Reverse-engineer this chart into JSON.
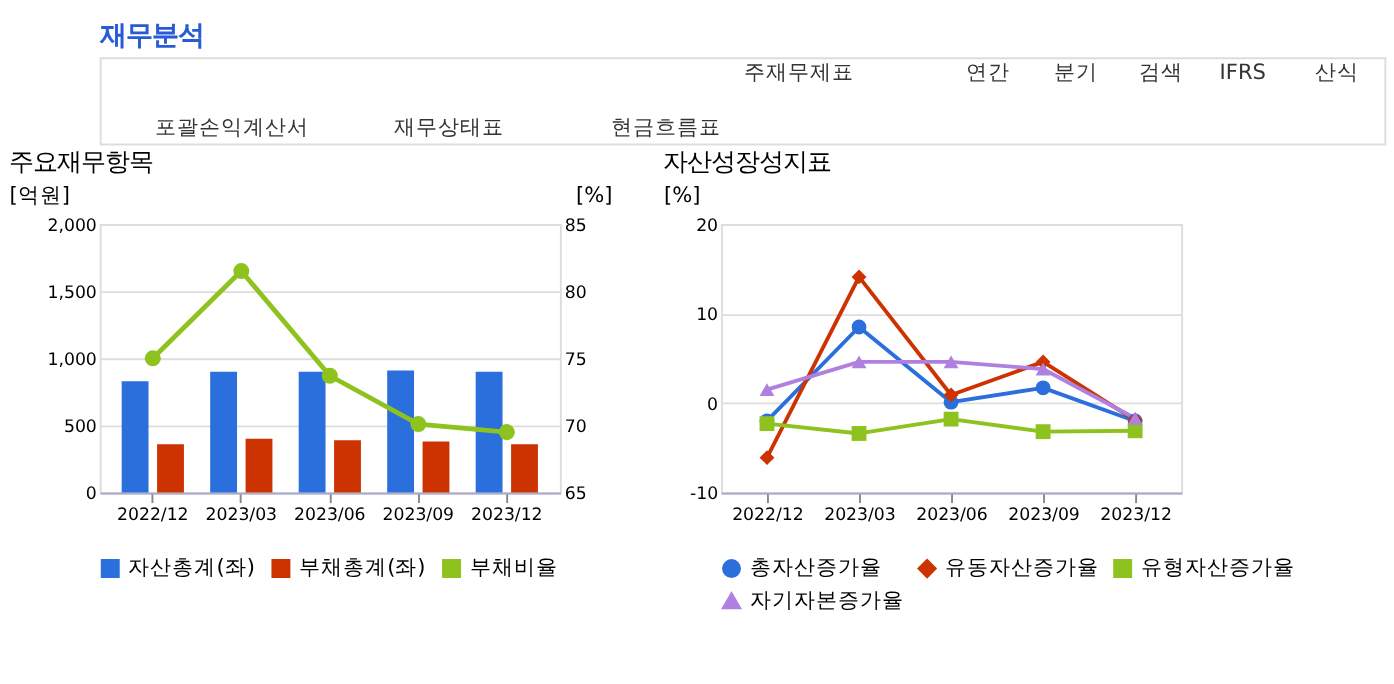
{
  "chart_data": [
    {
      "type": "other",
      "title": "재무분석",
      "annotations": [
        "주재무제표",
        "연간",
        "분기",
        "검색",
        "IFRS",
        "산식",
        "포괄손익계산서",
        "재무상태표",
        "현금흐름표"
      ]
    },
    {
      "type": "bar",
      "title": "주요재무항목",
      "categories": [
        "2022/12",
        "2023/03",
        "2023/06",
        "2023/09",
        "2023/12"
      ],
      "ylabel": "[억원]",
      "y2label": "[%]",
      "ylim": [
        0,
        2000
      ],
      "yticks": [
        0,
        500,
        {
          "value": 1000,
          "label": "1,000"
        },
        {
          "value": 1500,
          "label": "1,500"
        },
        {
          "value": 2000,
          "label": "2,000"
        }
      ],
      "y2lim": [
        65,
        85
      ],
      "y2ticks": [
        65,
        70,
        75,
        80,
        85
      ],
      "grid": "y",
      "legend": "bottom",
      "series": [
        {
          "name": "자산총계(좌)",
          "color": "#2a6fdb",
          "values": [
            830,
            900,
            900,
            910,
            900
          ]
        },
        {
          "name": "부채총계(좌)",
          "color": "#cc3300",
          "values": [
            360,
            400,
            390,
            380,
            360
          ]
        },
        {
          "name": "부채비율",
          "color": "#8dc21f",
          "type": "line",
          "axis": "y2",
          "marker": "circle",
          "values": [
            75.0,
            81.5,
            73.7,
            70.1,
            69.5
          ]
        }
      ]
    },
    {
      "type": "line",
      "title": "자산성장성지표",
      "categories": [
        "2022/12",
        "2023/03",
        "2023/06",
        "2023/09",
        "2023/12"
      ],
      "ylabel": "[%]",
      "ylim": [
        -10,
        20
      ],
      "yticks": [
        -10,
        0,
        10,
        20
      ],
      "grid": "y",
      "legend": "bottom",
      "series": [
        {
          "name": "총자산증가율",
          "color": "#2a6fdb",
          "marker": "circle",
          "values": [
            -2.0,
            8.5,
            0.1,
            1.7,
            -2.0
          ]
        },
        {
          "name": "유동자산증가율",
          "color": "#cc3300",
          "marker": "diamond",
          "values": [
            -6.1,
            14.1,
            0.9,
            4.6,
            -1.9
          ]
        },
        {
          "name": "유형자산증가율",
          "color": "#8dc21f",
          "marker": "square",
          "values": [
            -2.3,
            -3.4,
            -1.8,
            -3.2,
            -3.1
          ]
        },
        {
          "name": "자기자본증가율",
          "color": "#b080e0",
          "marker": "triangle",
          "values": [
            1.5,
            4.6,
            4.6,
            3.8,
            -1.7
          ]
        }
      ]
    }
  ]
}
